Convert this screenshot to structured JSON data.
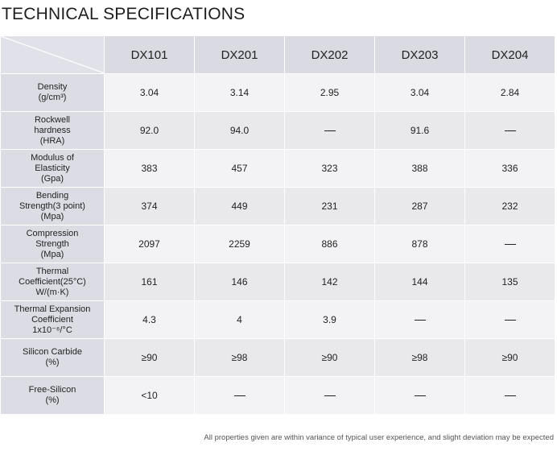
{
  "title": "TECHNICAL SPECIFICATIONS",
  "columns": [
    "DX101",
    "DX201",
    "DX202",
    "DX203",
    "DX204"
  ],
  "rows": [
    {
      "label_lines": [
        "Density",
        "(g/cm³)"
      ],
      "values": [
        "3.04",
        "3.14",
        "2.95",
        "3.04",
        "2.84"
      ]
    },
    {
      "label_lines": [
        "Rockwell",
        "hardness",
        "(HRA)"
      ],
      "values": [
        "92.0",
        "94.0",
        "—",
        "91.6",
        "—"
      ]
    },
    {
      "label_lines": [
        "Modulus of",
        "Elasticity",
        "(Gpa)"
      ],
      "values": [
        "383",
        "457",
        "323",
        "388",
        "336"
      ]
    },
    {
      "label_lines": [
        "Bending",
        "Strength(3 point)",
        "(Mpa)"
      ],
      "values": [
        "374",
        "449",
        "231",
        "287",
        "232"
      ]
    },
    {
      "label_lines": [
        "Compression",
        "Strength",
        "(Mpa)"
      ],
      "values": [
        "2097",
        "2259",
        "886",
        "878",
        "—"
      ]
    },
    {
      "label_lines": [
        "Thermal",
        "Coefficient(25°C)",
        "W/(m·K)"
      ],
      "values": [
        "161",
        "146",
        "142",
        "144",
        "135"
      ]
    },
    {
      "label_lines": [
        "Thermal Expansion",
        "Coefficient",
        "1x10⁻⁶/°C"
      ],
      "values": [
        "4.3",
        "4",
        "3.9",
        "—",
        "—"
      ]
    },
    {
      "label_lines": [
        "Silicon Carbide",
        "(%)"
      ],
      "values": [
        "≥90",
        "≥98",
        "≥90",
        "≥98",
        "≥90"
      ]
    },
    {
      "label_lines": [
        "Free-Silicon",
        "(%)"
      ],
      "values": [
        "<10",
        "—",
        "—",
        "—",
        "—"
      ]
    }
  ],
  "note": "All properties given are within variance of typical user experience, and slight deviation may be expected"
}
